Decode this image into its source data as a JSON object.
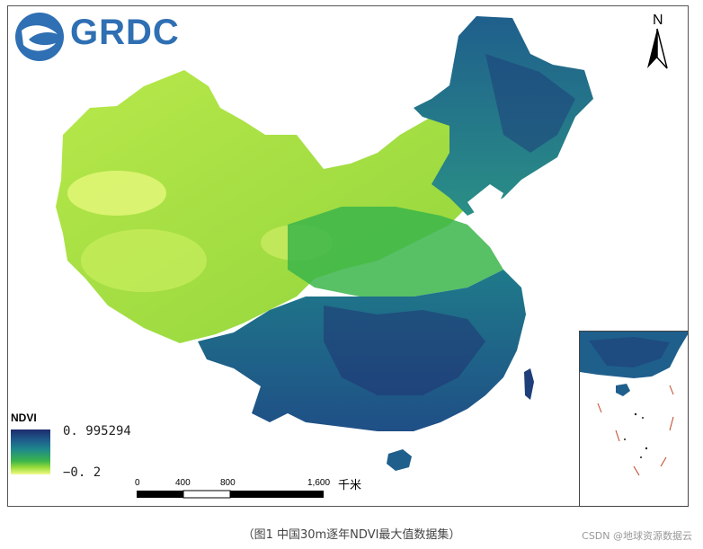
{
  "logo": {
    "text": "GRDC"
  },
  "north_arrow": {
    "label": "N"
  },
  "legend": {
    "title": "NDVI",
    "max_label": "0. 995294",
    "min_label": "−0. 2",
    "colors": [
      "#1e2b6e",
      "#1f5f8c",
      "#1e8a8a",
      "#3bb54a",
      "#9bdd3a",
      "#f4f98a"
    ]
  },
  "scale_bar": {
    "ticks": [
      "0",
      "400",
      "800",
      "1,600"
    ],
    "unit": "千米"
  },
  "caption": "（图1 中国30m逐年NDVI最大值数据集）",
  "watermark": "CSDN @地球资源数据云"
}
